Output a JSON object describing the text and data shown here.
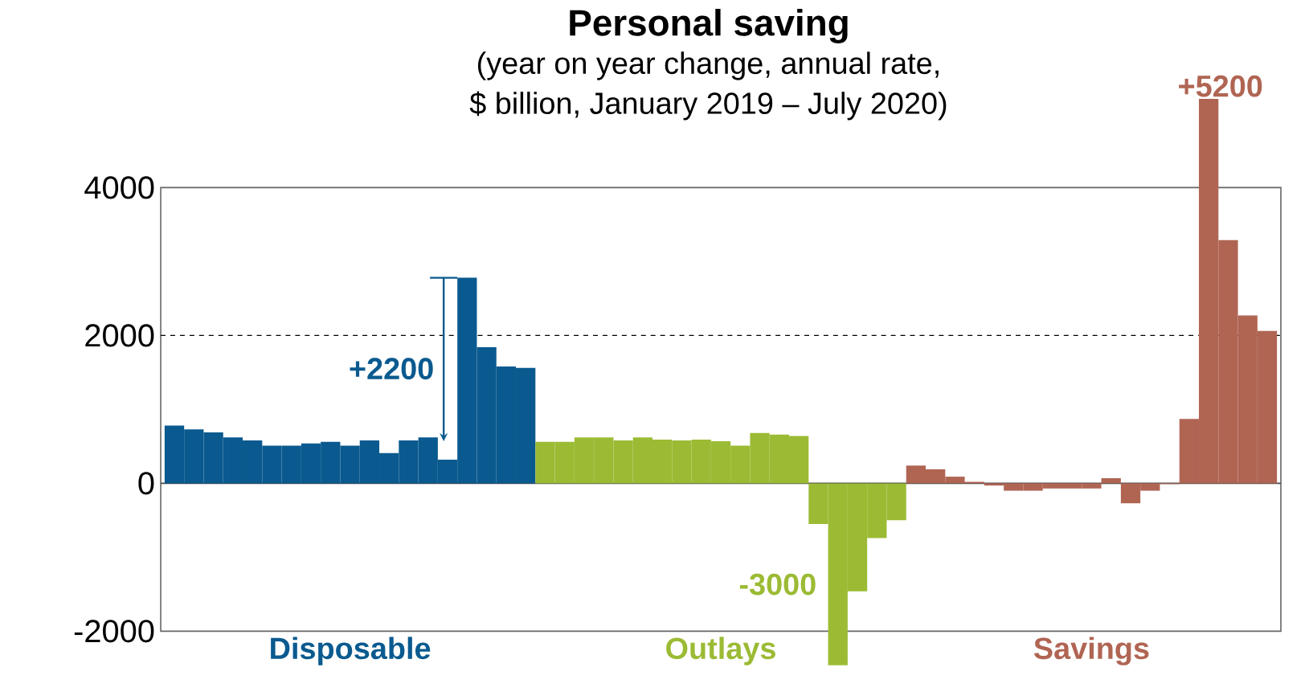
{
  "chart_data": {
    "type": "bar",
    "title": "Personal saving",
    "subtitle": "(year on year change, annual rate,\n$ billion, January 2019 – July 2020)",
    "categories": [
      null,
      null,
      null,
      null,
      null,
      null,
      null,
      null,
      null,
      null,
      null,
      null,
      null,
      null,
      null,
      null,
      null,
      null,
      null,
      null,
      null,
      null,
      null,
      null,
      null,
      null,
      null,
      null,
      null,
      null,
      null,
      null,
      null,
      null,
      null,
      null,
      null,
      null,
      null,
      null,
      null,
      null,
      null,
      null,
      null,
      null,
      null,
      null,
      null,
      null,
      null,
      null,
      null,
      null,
      null,
      null,
      null
    ],
    "series": [
      {
        "name": "Disposable",
        "color": "#0a5a8f",
        "values": [
          780,
          730,
          690,
          620,
          580,
          510,
          510,
          540,
          560,
          510,
          580,
          410,
          580,
          620,
          320,
          2780,
          1840,
          1580,
          1560,
          null,
          null,
          null,
          null,
          null,
          null,
          null,
          null,
          null,
          null,
          null,
          null,
          null,
          null,
          null,
          null,
          null,
          null,
          null,
          null,
          null,
          null,
          null,
          null,
          null,
          null,
          null,
          null,
          null,
          null,
          null,
          null,
          null,
          null,
          null,
          null,
          null,
          null
        ]
      },
      {
        "name": "Outlays",
        "color": "#9bbb34",
        "values": [
          null,
          null,
          null,
          null,
          null,
          null,
          null,
          null,
          null,
          null,
          null,
          null,
          null,
          null,
          null,
          null,
          null,
          null,
          null,
          560,
          560,
          620,
          620,
          580,
          620,
          590,
          580,
          590,
          570,
          510,
          680,
          660,
          640,
          -550,
          -2460,
          -1460,
          -740,
          -500,
          null,
          null,
          null,
          null,
          null,
          null,
          null,
          null,
          null,
          null,
          null,
          null,
          null,
          null,
          null,
          null,
          null,
          null,
          null
        ]
      },
      {
        "name": "Savings",
        "color": "#b06553",
        "values": [
          null,
          null,
          null,
          null,
          null,
          null,
          null,
          null,
          null,
          null,
          null,
          null,
          null,
          null,
          null,
          null,
          null,
          null,
          null,
          null,
          null,
          null,
          null,
          null,
          null,
          null,
          null,
          null,
          null,
          null,
          null,
          null,
          null,
          null,
          null,
          null,
          null,
          null,
          240,
          190,
          90,
          20,
          -30,
          -100,
          -100,
          -70,
          -70,
          -70,
          70,
          -270,
          -100,
          -10,
          870,
          5200,
          3290,
          2270,
          2060
        ]
      }
    ],
    "annotations": [
      "+2200",
      "-3000",
      {
        "text": "+5200",
        "y": 5200
      }
    ],
    "ref_lines": [
      {
        "axis": "y",
        "value": 2000,
        "color": "#000000",
        "line_style": "dashed"
      }
    ],
    "ylim": [
      -2500,
      5300
    ],
    "yticks": [
      -2000,
      0,
      2000,
      4000
    ],
    "grid": false
  }
}
